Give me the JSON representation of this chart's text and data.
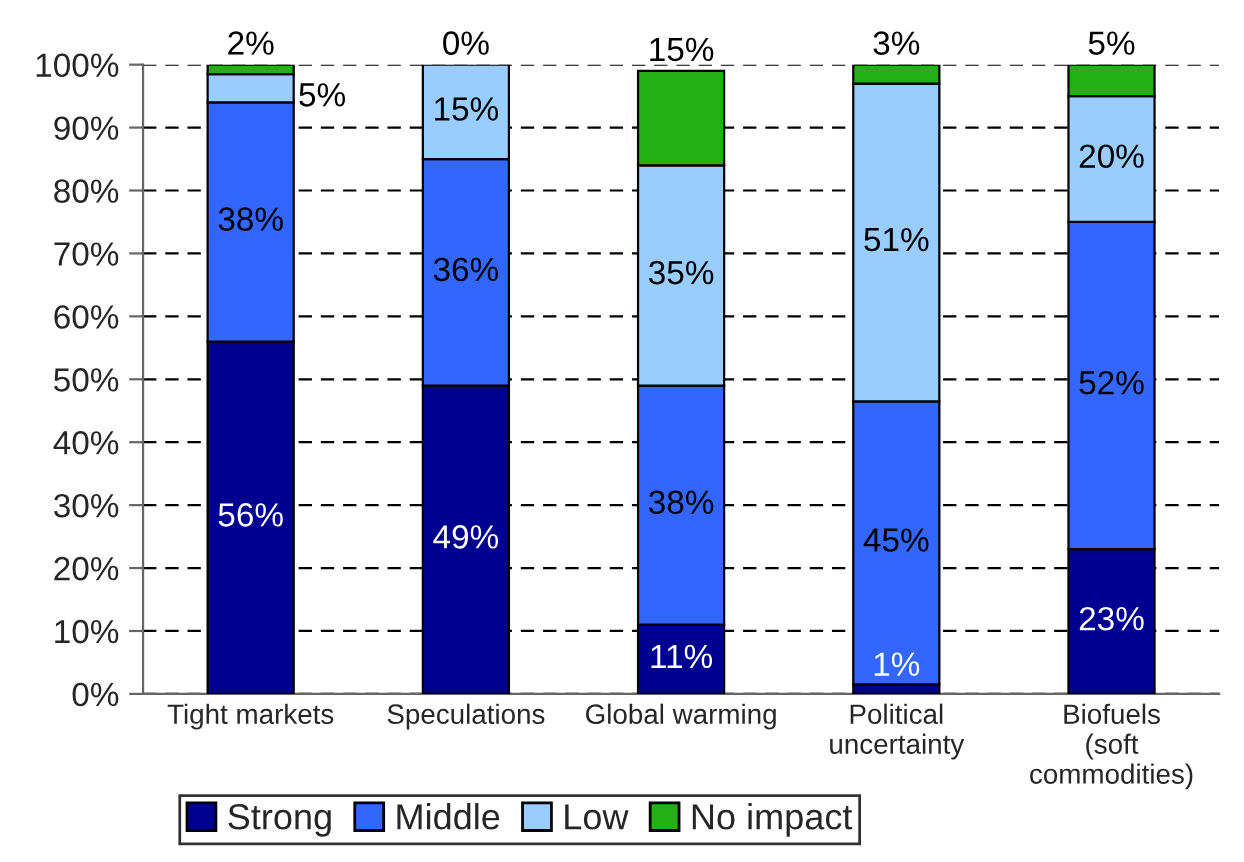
{
  "chart_data": {
    "type": "bar",
    "stacked": true,
    "categories": [
      "Tight markets",
      "Speculations",
      "Global warming",
      "Political\nuncertainty",
      "Biofuels\n(soft\ncommodities)"
    ],
    "series": [
      {
        "name": "Strong",
        "color": "#000090",
        "values": [
          56,
          49,
          11,
          1.5,
          23
        ],
        "value_labels": [
          "56%",
          "49%",
          "11%",
          "1%",
          "23%"
        ]
      },
      {
        "name": "Middle",
        "color": "#3366ff",
        "values": [
          38,
          36,
          38,
          45,
          52
        ],
        "value_labels": [
          "38%",
          "36%",
          "38%",
          "45%",
          "52%"
        ]
      },
      {
        "name": "Low",
        "color": "#99ccff",
        "values": [
          4.5,
          15,
          35,
          50.5,
          20
        ],
        "value_labels": [
          "5%",
          "15%",
          "35%",
          "51%",
          "20%"
        ]
      },
      {
        "name": "No impact",
        "color": "#22b014",
        "values": [
          1.5,
          0,
          15,
          3,
          5
        ],
        "value_labels": [
          "2%",
          "0%",
          "15%",
          "3%",
          "5%"
        ]
      }
    ],
    "ylim": [
      0,
      100
    ],
    "yticks": [
      {
        "value": 0,
        "label": "0%"
      },
      {
        "value": 10,
        "label": "10%"
      },
      {
        "value": 20,
        "label": "20%"
      },
      {
        "value": 30,
        "label": "30%"
      },
      {
        "value": 40,
        "label": "40%"
      },
      {
        "value": 50,
        "label": "50%"
      },
      {
        "value": 60,
        "label": "60%"
      },
      {
        "value": 70,
        "label": "70%"
      },
      {
        "value": 80,
        "label": "80%"
      },
      {
        "value": 90,
        "label": "90%"
      },
      {
        "value": 100,
        "label": "100%"
      }
    ],
    "grid": "y",
    "legend": "bottom"
  }
}
